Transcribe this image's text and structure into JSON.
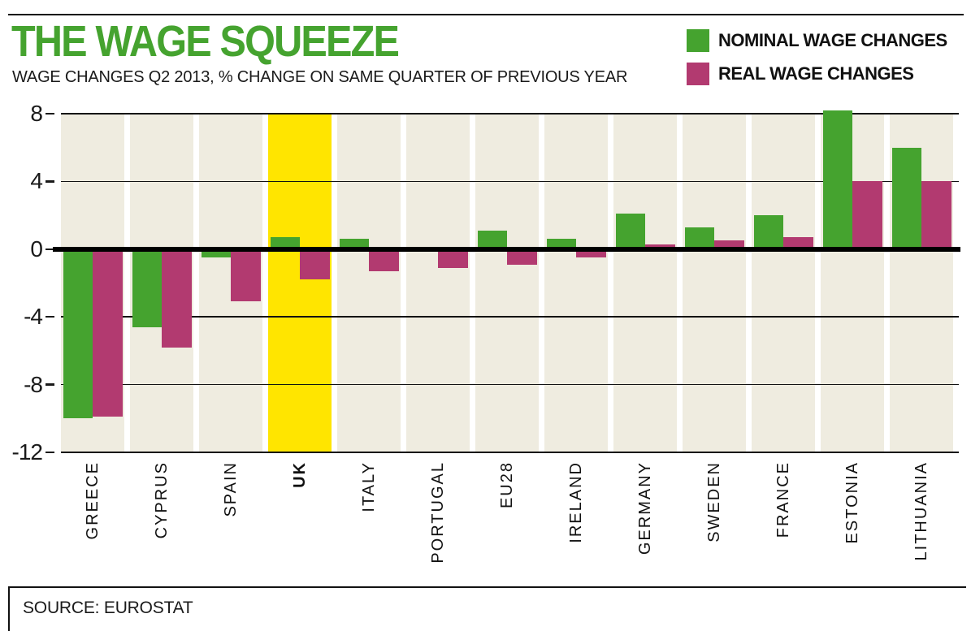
{
  "header": {
    "title": "THE WAGE SQUEEZE",
    "subtitle": "WAGE CHANGES Q2 2013, % CHANGE ON SAME QUARTER OF PREVIOUS YEAR"
  },
  "legend": {
    "items": [
      {
        "label": "NOMINAL WAGE CHANGES",
        "color": "#45A32F"
      },
      {
        "label": "REAL WAGE CHANGES",
        "color": "#B23A70"
      }
    ]
  },
  "source": {
    "label": "SOURCE: EUROSTAT"
  },
  "colors": {
    "title_green": "#45A32F",
    "nominal_green": "#45A32F",
    "real_magenta": "#B23A70",
    "highlight_yellow": "#FFE500",
    "column_cream": "#EFECE0",
    "text_dark": "#1A1A1A"
  },
  "chart_data": {
    "type": "bar",
    "title": "THE WAGE SQUEEZE",
    "subtitle": "WAGE CHANGES Q2 2013, % CHANGE ON SAME QUARTER OF PREVIOUS YEAR",
    "categories": [
      "GREECE",
      "CYPRUS",
      "SPAIN",
      "UK",
      "ITALY",
      "PORTUGAL",
      "EU28",
      "IRELAND",
      "GERMANY",
      "SWEDEN",
      "FRANCE",
      "ESTONIA",
      "LITHUANIA"
    ],
    "series": [
      {
        "name": "NOMINAL WAGE CHANGES",
        "color": "#45A32F",
        "values": [
          -10.0,
          -4.6,
          -0.5,
          0.7,
          0.6,
          0.0,
          1.1,
          0.6,
          2.1,
          1.3,
          2.0,
          8.2,
          6.0
        ]
      },
      {
        "name": "REAL WAGE CHANGES",
        "color": "#B23A70",
        "values": [
          -9.9,
          -5.8,
          -3.1,
          -1.8,
          -1.3,
          -1.1,
          -0.9,
          -0.5,
          0.3,
          0.5,
          0.7,
          4.0,
          4.0
        ]
      }
    ],
    "xlabel": "",
    "ylabel": "",
    "ylim": [
      -12,
      8
    ],
    "yticks": [
      8,
      4,
      0,
      -4,
      -8,
      -12
    ],
    "grid": true,
    "legend_position": "top-right",
    "highlight_category": "UK",
    "highlight_color": "#FFE500",
    "column_background": "#EFECE0",
    "zero_line": true,
    "source": "SOURCE: EUROSTAT"
  }
}
